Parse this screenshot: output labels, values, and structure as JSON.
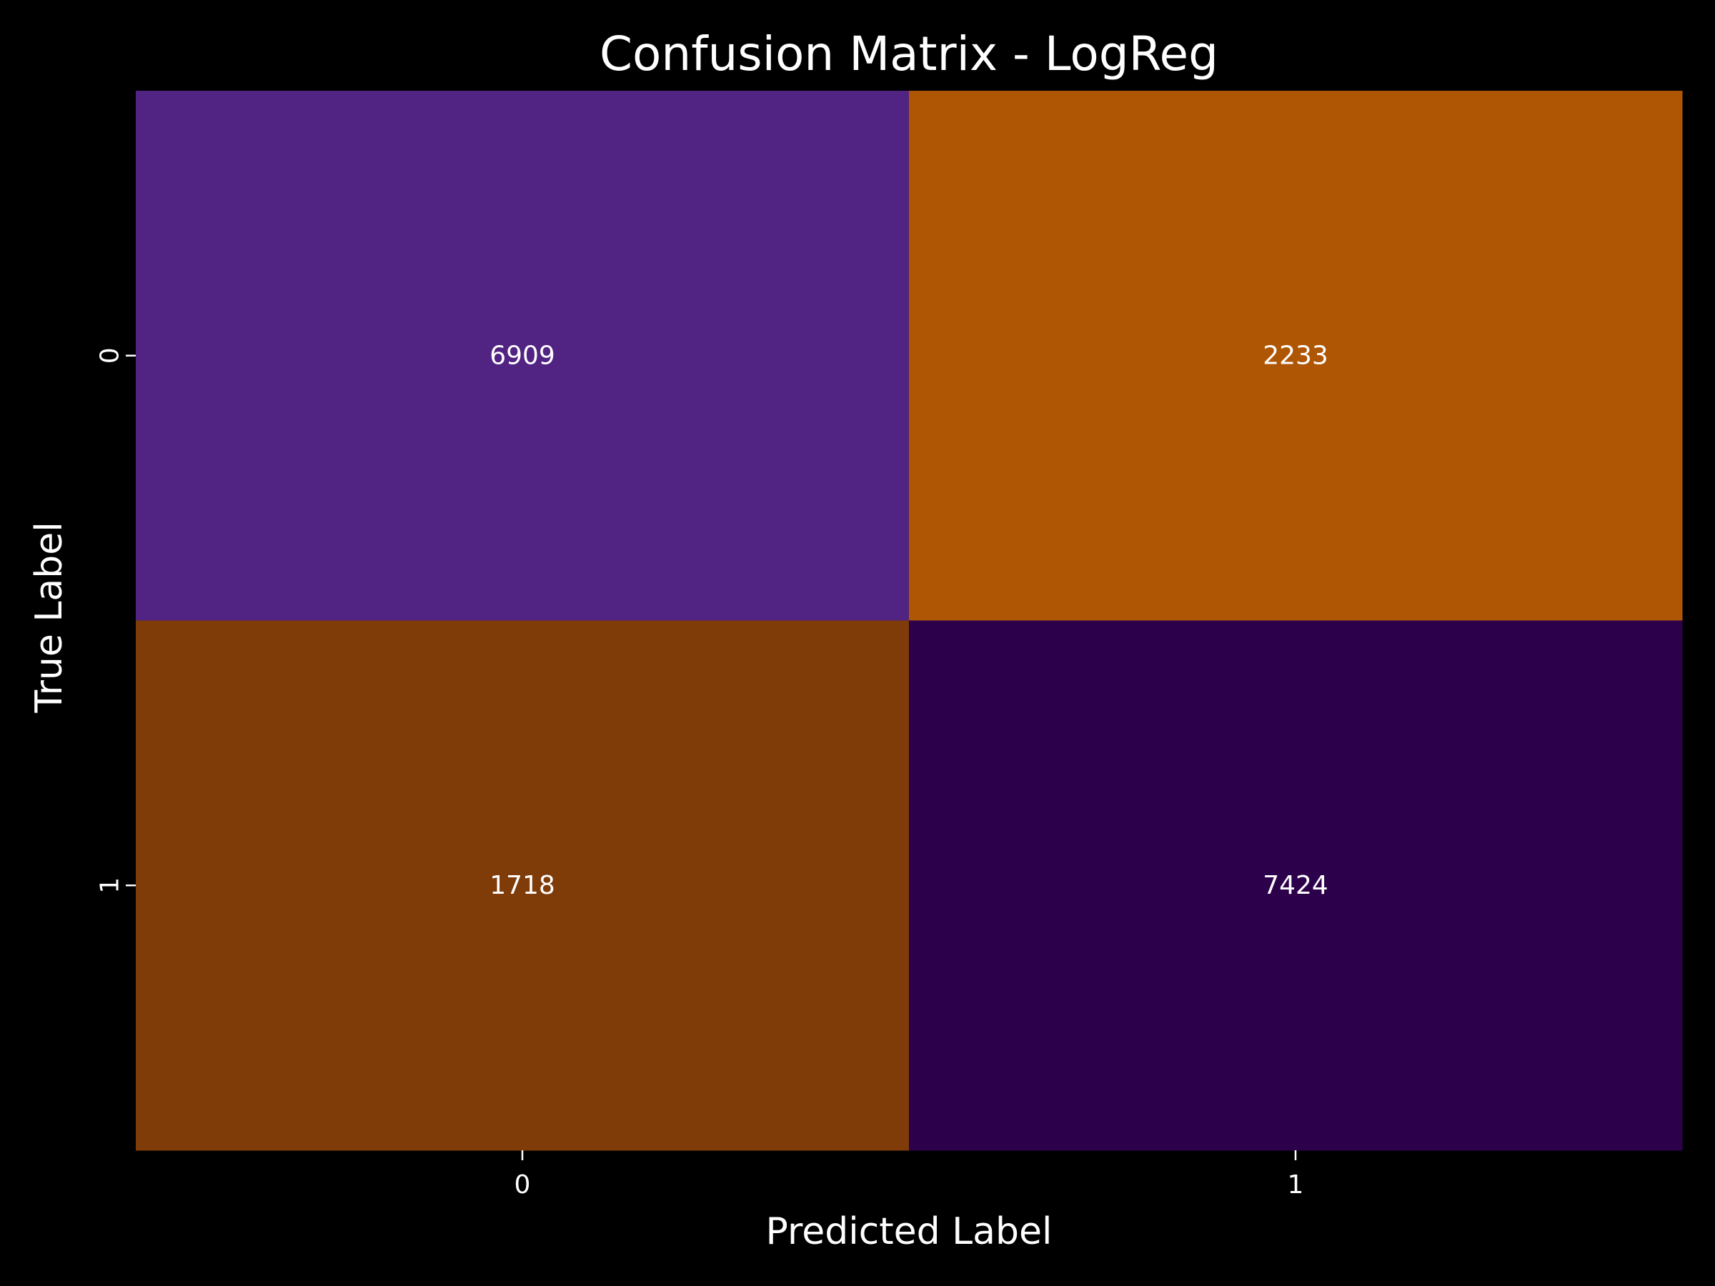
{
  "chart_data": {
    "type": "heatmap",
    "title": "Confusion Matrix - LogReg",
    "xlabel": "Predicted Label",
    "ylabel": "True Label",
    "x_categories": [
      "0",
      "1"
    ],
    "y_categories": [
      "0",
      "1"
    ],
    "values": [
      [
        6909,
        2233
      ],
      [
        1718,
        7424
      ]
    ],
    "cell_colors": [
      [
        "#512383",
        "#ae5604"
      ],
      [
        "#7f3b08",
        "#2d004b"
      ]
    ],
    "colorbar": false,
    "grid": false
  },
  "colors": {
    "background": "#000000",
    "text": "#ffffff"
  }
}
